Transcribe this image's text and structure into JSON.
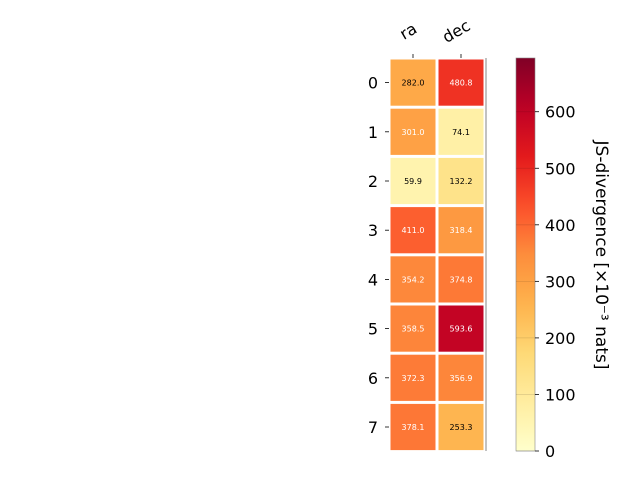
{
  "chart_data": {
    "type": "heatmap",
    "columns": [
      "ra",
      "dec"
    ],
    "rows": [
      "0",
      "1",
      "2",
      "3",
      "4",
      "5",
      "6",
      "7"
    ],
    "values": [
      [
        282.0,
        480.8
      ],
      [
        301.0,
        74.1
      ],
      [
        59.9,
        132.2
      ],
      [
        411.0,
        318.4
      ],
      [
        354.2,
        374.8
      ],
      [
        358.5,
        593.6
      ],
      [
        372.3,
        356.9
      ],
      [
        378.1,
        253.3
      ]
    ],
    "value_labels": [
      [
        "282.0",
        "480.8"
      ],
      [
        "301.0",
        "74.1"
      ],
      [
        "59.9",
        "132.2"
      ],
      [
        "411.0",
        "318.4"
      ],
      [
        "354.2",
        "374.8"
      ],
      [
        "358.5",
        "593.6"
      ],
      [
        "372.3",
        "356.9"
      ],
      [
        "378.1",
        "253.3"
      ]
    ],
    "colorbar": {
      "label": "JS-divergence [×10⁻³ nats]",
      "range": [
        0,
        695
      ],
      "ticks": [
        0,
        100,
        200,
        300,
        400,
        500,
        600
      ],
      "colormap": "YlOrRd"
    },
    "colors": {
      "cell_border": "#ffffff",
      "light_text": "#ffffff",
      "dark_text": "#000000"
    }
  }
}
